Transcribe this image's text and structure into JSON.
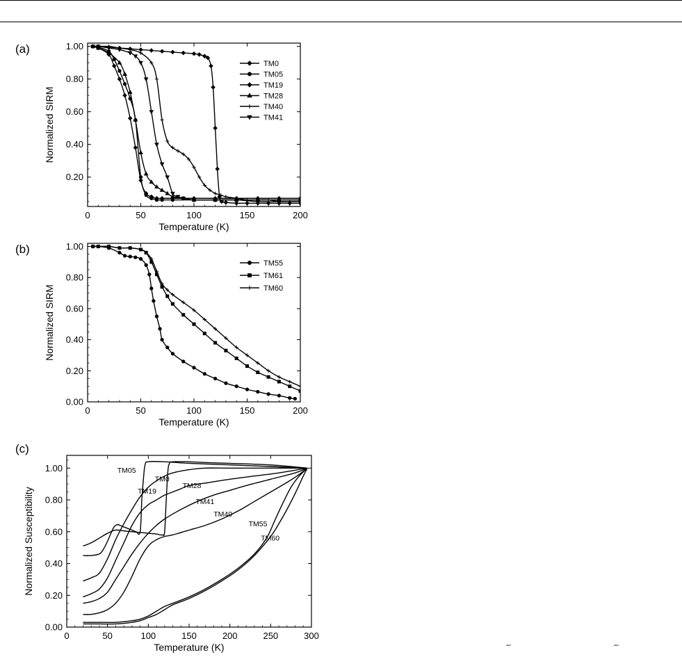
{
  "chart_data": [
    {
      "panel": "(a)",
      "type": "line",
      "xlabel": "Temperature (K)",
      "ylabel": "Normalized SIRM",
      "xlim": [
        0,
        200
      ],
      "ylim": [
        0.02,
        1.02
      ],
      "xticks": [
        0,
        50,
        100,
        150,
        200
      ],
      "yticks": [
        0.2,
        0.4,
        0.6,
        0.8,
        1.0
      ],
      "legend": "top-right",
      "series": [
        {
          "name": "TM0",
          "marker": "diamond",
          "x": [
            5,
            10,
            20,
            30,
            40,
            50,
            60,
            70,
            80,
            90,
            100,
            105,
            110,
            113,
            116,
            118,
            120,
            122,
            124,
            126,
            130,
            140,
            150,
            160,
            170,
            180,
            190,
            200
          ],
          "y": [
            1.0,
            1.0,
            0.995,
            0.99,
            0.985,
            0.98,
            0.975,
            0.97,
            0.965,
            0.96,
            0.955,
            0.95,
            0.94,
            0.93,
            0.88,
            0.75,
            0.5,
            0.25,
            0.08,
            0.05,
            0.045,
            0.04,
            0.04,
            0.04,
            0.04,
            0.04,
            0.04,
            0.04
          ]
        },
        {
          "name": "TM05",
          "marker": "circle",
          "x": [
            5,
            10,
            20,
            25,
            30,
            35,
            40,
            45,
            50,
            55,
            60,
            65,
            70,
            80,
            100,
            120,
            140,
            160,
            180,
            200
          ],
          "y": [
            1.0,
            0.995,
            0.97,
            0.92,
            0.85,
            0.77,
            0.68,
            0.55,
            0.2,
            0.09,
            0.07,
            0.06,
            0.06,
            0.06,
            0.06,
            0.06,
            0.06,
            0.06,
            0.06,
            0.06
          ]
        },
        {
          "name": "TM19",
          "marker": "diamond",
          "x": [
            5,
            10,
            20,
            25,
            30,
            35,
            40,
            45,
            50,
            55,
            60,
            65,
            70,
            80,
            100,
            120,
            140,
            160,
            180,
            200
          ],
          "y": [
            1.0,
            0.99,
            0.95,
            0.88,
            0.8,
            0.7,
            0.56,
            0.38,
            0.18,
            0.1,
            0.08,
            0.07,
            0.07,
            0.07,
            0.07,
            0.07,
            0.07,
            0.07,
            0.07,
            0.07
          ]
        },
        {
          "name": "TM28",
          "marker": "triangle-up",
          "x": [
            5,
            10,
            20,
            30,
            35,
            40,
            45,
            50,
            55,
            60,
            65,
            70,
            75,
            80,
            90,
            100,
            120,
            140,
            160,
            180,
            200
          ],
          "y": [
            1.0,
            0.99,
            0.96,
            0.9,
            0.83,
            0.72,
            0.55,
            0.35,
            0.22,
            0.17,
            0.14,
            0.12,
            0.1,
            0.08,
            0.07,
            0.06,
            0.06,
            0.06,
            0.06,
            0.06,
            0.06
          ]
        },
        {
          "name": "TM40",
          "marker": "plus",
          "x": [
            5,
            10,
            20,
            30,
            40,
            50,
            60,
            65,
            70,
            75,
            80,
            85,
            90,
            95,
            100,
            105,
            110,
            115,
            120,
            125,
            130,
            140,
            150,
            160,
            170,
            180,
            190,
            200
          ],
          "y": [
            1.0,
            1.0,
            1.0,
            0.99,
            0.98,
            0.96,
            0.9,
            0.8,
            0.55,
            0.42,
            0.38,
            0.36,
            0.34,
            0.31,
            0.26,
            0.2,
            0.15,
            0.12,
            0.1,
            0.09,
            0.08,
            0.07,
            0.06,
            0.06,
            0.06,
            0.05,
            0.05,
            0.05
          ]
        },
        {
          "name": "TM41",
          "marker": "triangle-down",
          "x": [
            5,
            10,
            20,
            30,
            40,
            45,
            50,
            55,
            60,
            65,
            70,
            75,
            80,
            85,
            90,
            100,
            120,
            140,
            160,
            180,
            200
          ],
          "y": [
            1.0,
            1.0,
            0.99,
            0.98,
            0.96,
            0.94,
            0.9,
            0.8,
            0.6,
            0.4,
            0.28,
            0.2,
            0.1,
            0.08,
            0.07,
            0.06,
            0.06,
            0.06,
            0.05,
            0.05,
            0.05
          ]
        }
      ]
    },
    {
      "panel": "(b)",
      "type": "line",
      "xlabel": "Temperature (K)",
      "ylabel": "Normalized SIRM",
      "xlim": [
        0,
        200
      ],
      "ylim": [
        0,
        1.02
      ],
      "xticks": [
        0,
        50,
        100,
        150,
        200
      ],
      "yticks": [
        0.0,
        0.2,
        0.4,
        0.6,
        0.8,
        1.0
      ],
      "legend": "top-right",
      "series": [
        {
          "name": "TM55",
          "marker": "circle",
          "x": [
            5,
            10,
            20,
            30,
            35,
            40,
            45,
            50,
            55,
            58,
            60,
            62,
            65,
            68,
            70,
            75,
            80,
            90,
            100,
            110,
            120,
            130,
            140,
            150,
            160,
            170,
            180,
            190,
            195
          ],
          "y": [
            1.0,
            1.0,
            0.99,
            0.96,
            0.94,
            0.935,
            0.93,
            0.92,
            0.88,
            0.82,
            0.73,
            0.65,
            0.55,
            0.47,
            0.4,
            0.35,
            0.31,
            0.26,
            0.22,
            0.18,
            0.15,
            0.12,
            0.1,
            0.08,
            0.065,
            0.05,
            0.04,
            0.025,
            0.02
          ]
        },
        {
          "name": "TM61",
          "marker": "square",
          "x": [
            5,
            10,
            20,
            30,
            40,
            50,
            55,
            60,
            65,
            70,
            75,
            80,
            90,
            100,
            110,
            120,
            130,
            140,
            150,
            160,
            170,
            180,
            190,
            200
          ],
          "y": [
            1.0,
            1.0,
            1.0,
            0.99,
            0.99,
            0.98,
            0.96,
            0.9,
            0.82,
            0.74,
            0.68,
            0.63,
            0.56,
            0.5,
            0.44,
            0.38,
            0.33,
            0.28,
            0.23,
            0.19,
            0.16,
            0.13,
            0.1,
            0.07
          ]
        },
        {
          "name": "TM60",
          "marker": "plus",
          "x": [
            5,
            10,
            20,
            30,
            40,
            50,
            55,
            60,
            65,
            70,
            75,
            80,
            90,
            100,
            110,
            120,
            130,
            140,
            150,
            160,
            170,
            180,
            190,
            200
          ],
          "y": [
            1.0,
            1.0,
            1.0,
            0.99,
            0.99,
            0.98,
            0.96,
            0.92,
            0.84,
            0.76,
            0.72,
            0.69,
            0.64,
            0.59,
            0.53,
            0.47,
            0.41,
            0.35,
            0.3,
            0.25,
            0.2,
            0.16,
            0.13,
            0.1
          ]
        }
      ]
    },
    {
      "panel": "(c)",
      "type": "line",
      "xlabel": "Temperature (K)",
      "ylabel": "Normalized Susceptibility",
      "xlim": [
        0,
        300
      ],
      "ylim": [
        0,
        1.08
      ],
      "xticks": [
        0,
        50,
        100,
        150,
        200,
        250,
        300
      ],
      "yticks": [
        0.0,
        0.2,
        0.4,
        0.6,
        0.8,
        1.0
      ],
      "series": [
        {
          "name": "TM05",
          "label": "TM05",
          "label_at": [
            62,
            0.97
          ],
          "x": [
            20,
            30,
            40,
            45,
            50,
            55,
            58,
            60,
            63,
            65,
            70,
            75,
            80,
            85,
            90,
            92,
            94,
            96,
            100,
            120,
            150,
            200,
            250,
            295
          ],
          "y": [
            0.45,
            0.45,
            0.46,
            0.49,
            0.54,
            0.6,
            0.63,
            0.64,
            0.645,
            0.64,
            0.63,
            0.62,
            0.61,
            0.6,
            0.6,
            0.8,
            0.93,
            1.02,
            1.04,
            1.04,
            1.03,
            1.02,
            1.01,
            1.0
          ]
        },
        {
          "name": "TM0",
          "label": "TM0",
          "label_at": [
            108,
            0.915
          ],
          "x": [
            20,
            30,
            40,
            50,
            60,
            70,
            80,
            90,
            100,
            110,
            115,
            118,
            120,
            122,
            124,
            126,
            130,
            150,
            170,
            200,
            250,
            295
          ],
          "y": [
            0.51,
            0.53,
            0.56,
            0.59,
            0.61,
            0.605,
            0.6,
            0.595,
            0.59,
            0.585,
            0.58,
            0.58,
            0.6,
            0.8,
            0.98,
            1.03,
            1.04,
            1.04,
            1.035,
            1.03,
            1.02,
            1.0
          ]
        },
        {
          "name": "TM19",
          "label": "TM19",
          "label_at": [
            87,
            0.84
          ],
          "x": [
            20,
            30,
            40,
            50,
            60,
            70,
            80,
            90,
            100,
            110,
            120,
            130,
            150,
            170,
            200,
            250,
            295
          ],
          "y": [
            0.29,
            0.31,
            0.34,
            0.43,
            0.55,
            0.65,
            0.74,
            0.82,
            0.88,
            0.92,
            0.95,
            0.97,
            0.99,
            1.0,
            1.0,
            1.0,
            1.0
          ]
        },
        {
          "name": "TM28",
          "label": "TM28",
          "label_at": [
            142,
            0.875
          ],
          "x": [
            20,
            30,
            40,
            50,
            60,
            70,
            80,
            90,
            100,
            110,
            120,
            130,
            140,
            150,
            175,
            200,
            230,
            260,
            295
          ],
          "y": [
            0.19,
            0.21,
            0.24,
            0.31,
            0.42,
            0.53,
            0.64,
            0.72,
            0.77,
            0.8,
            0.83,
            0.85,
            0.87,
            0.89,
            0.91,
            0.93,
            0.95,
            0.97,
            1.0
          ]
        },
        {
          "name": "TM41",
          "label": "TM41",
          "label_at": [
            158,
            0.775
          ],
          "x": [
            20,
            30,
            40,
            50,
            60,
            70,
            80,
            90,
            100,
            110,
            120,
            140,
            160,
            180,
            200,
            220,
            250,
            280,
            295
          ],
          "y": [
            0.15,
            0.16,
            0.18,
            0.22,
            0.3,
            0.38,
            0.46,
            0.53,
            0.59,
            0.64,
            0.68,
            0.74,
            0.79,
            0.83,
            0.86,
            0.89,
            0.93,
            0.97,
            1.0
          ]
        },
        {
          "name": "TM40",
          "label": "TM40",
          "label_at": [
            180,
            0.695
          ],
          "x": [
            20,
            30,
            40,
            50,
            60,
            70,
            80,
            90,
            100,
            110,
            120,
            130,
            150,
            170,
            190,
            210,
            230,
            250,
            270,
            285,
            295
          ],
          "y": [
            0.08,
            0.08,
            0.09,
            0.11,
            0.15,
            0.22,
            0.32,
            0.43,
            0.51,
            0.55,
            0.57,
            0.58,
            0.61,
            0.64,
            0.68,
            0.73,
            0.79,
            0.85,
            0.91,
            0.96,
            1.0
          ]
        },
        {
          "name": "TM55",
          "label": "TM55",
          "label_at": [
            223,
            0.635
          ],
          "x": [
            20,
            40,
            60,
            80,
            90,
            100,
            110,
            120,
            130,
            150,
            170,
            190,
            210,
            230,
            245,
            255,
            265,
            275,
            285,
            295
          ],
          "y": [
            0.03,
            0.03,
            0.03,
            0.04,
            0.05,
            0.07,
            0.1,
            0.13,
            0.15,
            0.19,
            0.24,
            0.3,
            0.37,
            0.46,
            0.56,
            0.67,
            0.78,
            0.88,
            0.95,
            1.0
          ]
        },
        {
          "name": "TM60",
          "label": "TM60",
          "label_at": [
            238,
            0.545
          ],
          "x": [
            20,
            40,
            60,
            80,
            90,
            100,
            110,
            120,
            130,
            150,
            170,
            190,
            210,
            230,
            250,
            260,
            270,
            280,
            290,
            295
          ],
          "y": [
            0.02,
            0.02,
            0.02,
            0.03,
            0.04,
            0.06,
            0.08,
            0.11,
            0.14,
            0.18,
            0.23,
            0.29,
            0.36,
            0.45,
            0.57,
            0.65,
            0.74,
            0.84,
            0.95,
            1.0
          ]
        }
      ]
    }
  ],
  "footer_marks": [
    "–",
    "–"
  ]
}
